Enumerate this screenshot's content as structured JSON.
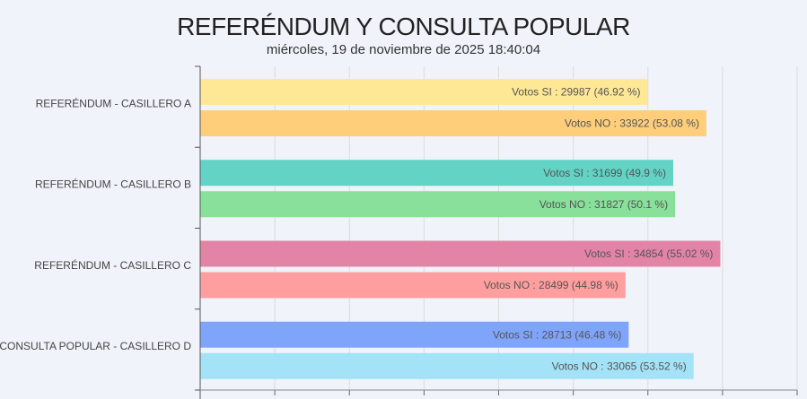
{
  "chart_data": {
    "type": "bar",
    "orientation": "horizontal",
    "title": "REFERÉNDUM Y CONSULTA POPULAR",
    "subtitle": "miércoles, 19 de noviembre de 2025 18:40:04",
    "categories": [
      "REFERÉNDUM - CASILLERO A",
      "REFERÉNDUM - CASILLERO B",
      "REFERÉNDUM - CASILLERO C",
      "CONSULTA POPULAR - CASILLERO D"
    ],
    "series": [
      {
        "name": "Votos SI",
        "values": [
          29987,
          31699,
          34854,
          28713
        ],
        "percents": [
          "46.92 %",
          "49.9 %",
          "55.02 %",
          "46.48 %"
        ],
        "labels": [
          "Votos SI : 29987  (46.92 %)",
          "Votos SI : 31699  (49.9 %)",
          "Votos SI : 34854  (55.02 %)",
          "Votos SI : 28713  (46.48 %)"
        ],
        "colors": [
          "#fee896",
          "#63d3c6",
          "#e384a6",
          "#7fa5fb"
        ]
      },
      {
        "name": "Votos NO",
        "values": [
          33922,
          31827,
          28499,
          33065
        ],
        "percents": [
          "53.08 %",
          "50.1 %",
          "44.98 %",
          "53.52 %"
        ],
        "labels": [
          "Votos NO : 33922  (53.08 %)",
          "Votos NO : 31827  (50.1 %)",
          "Votos NO : 28499  (44.98 %)",
          "Votos NO : 33065  (53.52 %)"
        ],
        "colors": [
          "#fece7b",
          "#88e09a",
          "#ff9e9e",
          "#a3e2f7"
        ]
      }
    ],
    "xlim": [
      0,
      40000
    ],
    "grid": true,
    "legend": "none"
  }
}
